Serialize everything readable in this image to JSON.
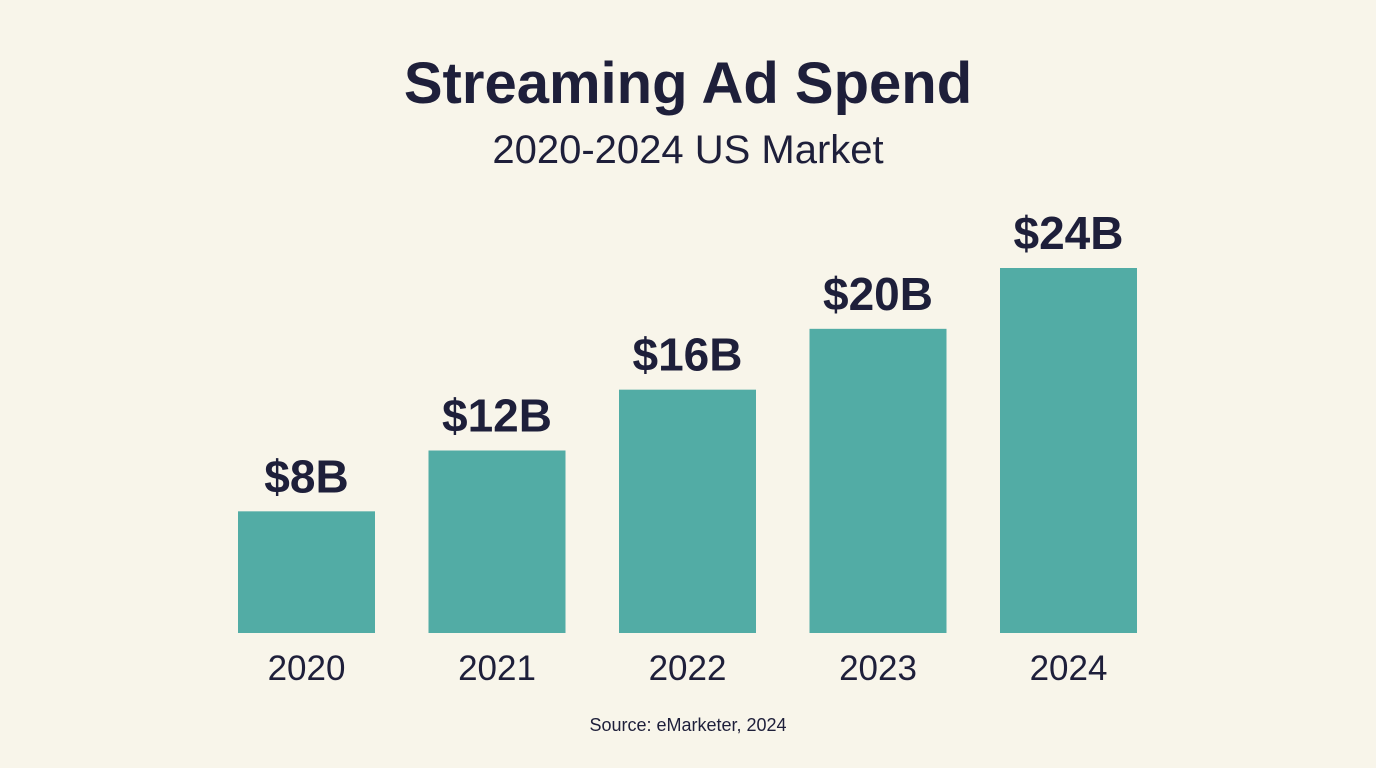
{
  "chart_data": {
    "type": "bar",
    "title": "Streaming Ad Spend",
    "subtitle": "2020-2024 US Market",
    "categories": [
      "2020",
      "2021",
      "2022",
      "2023",
      "2024"
    ],
    "values": [
      8,
      12,
      16,
      20,
      24
    ],
    "data_labels": [
      "$8B",
      "$12B",
      "$16B",
      "$20B",
      "$24B"
    ],
    "xlabel": "",
    "ylabel": "",
    "ylim": [
      0,
      24
    ],
    "grid": false,
    "legend": "none",
    "source": "Source: eMarketer, 2024",
    "colors": {
      "bar": "#52aca5",
      "text": "#1e1f3a",
      "background": "#f8f5ea"
    }
  }
}
